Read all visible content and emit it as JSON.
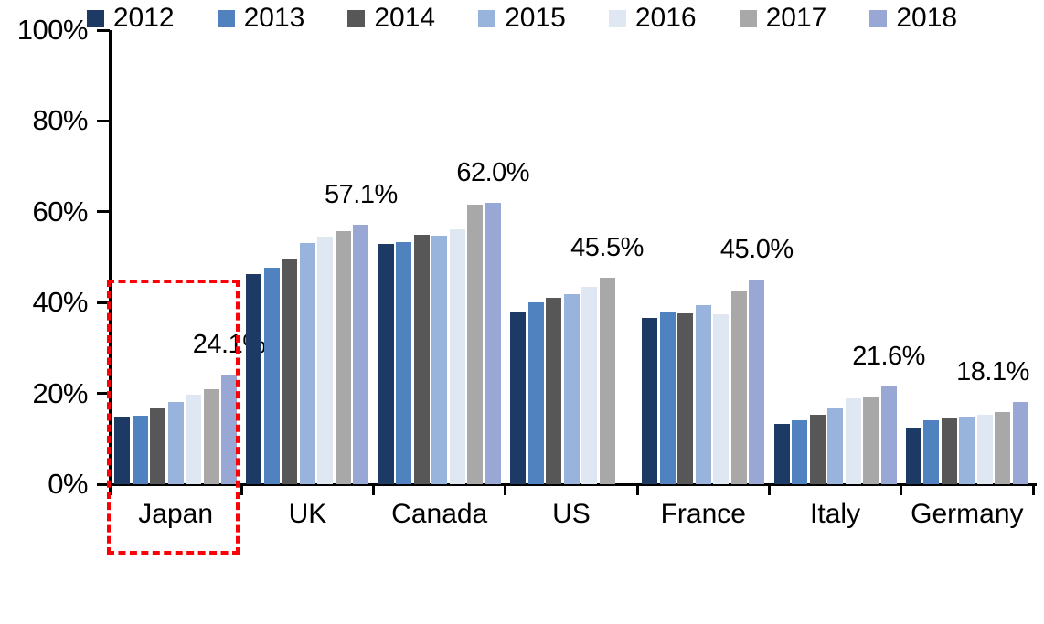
{
  "chart_data": {
    "type": "bar",
    "title": "",
    "xlabel": "",
    "ylabel": "",
    "categories": [
      "Japan",
      "UK",
      "Canada",
      "US",
      "France",
      "Italy",
      "Germany"
    ],
    "series": [
      {
        "name": "2012",
        "color": "#1c3a63",
        "values": [
          14.9,
          46.3,
          52.9,
          38.1,
          36.6,
          13.3,
          12.5
        ]
      },
      {
        "name": "2013",
        "color": "#4f82be",
        "values": [
          15.0,
          47.7,
          53.4,
          40.1,
          37.8,
          14.0,
          14.0
        ]
      },
      {
        "name": "2014",
        "color": "#575757",
        "values": [
          16.6,
          49.6,
          54.9,
          41.0,
          37.7,
          15.2,
          14.4
        ]
      },
      {
        "name": "2015",
        "color": "#99b4dc",
        "values": [
          18.1,
          53.2,
          54.7,
          41.9,
          39.4,
          16.8,
          14.8
        ]
      },
      {
        "name": "2016",
        "color": "#dfe7f3",
        "values": [
          19.8,
          54.5,
          56.1,
          43.4,
          37.4,
          18.9,
          15.3
        ]
      },
      {
        "name": "2017",
        "color": "#a8a8a8",
        "values": [
          21.0,
          55.8,
          61.5,
          45.5,
          42.4,
          19.2,
          15.8
        ]
      },
      {
        "name": "2018",
        "color": "#98a7d3",
        "values": [
          24.1,
          57.1,
          62.0,
          null,
          45.0,
          21.6,
          18.1
        ]
      }
    ],
    "data_labels": [
      "24.1%",
      "57.1%",
      "62.0%",
      "45.5%",
      "45.0%",
      "21.6%",
      "18.1%"
    ],
    "y_axis": {
      "min": 0,
      "max": 100,
      "step": 20,
      "tick_labels": [
        "0%",
        "20%",
        "40%",
        "60%",
        "80%",
        "100%"
      ]
    },
    "grid": "off",
    "legend": {
      "position": "bottom",
      "entries": [
        "2012",
        "2013",
        "2014",
        "2015",
        "2016",
        "2017",
        "2018"
      ]
    },
    "annotation": {
      "type": "dashed-rectangle",
      "target_category": "Japan",
      "color": "#fb0006",
      "top_value": 45
    }
  }
}
